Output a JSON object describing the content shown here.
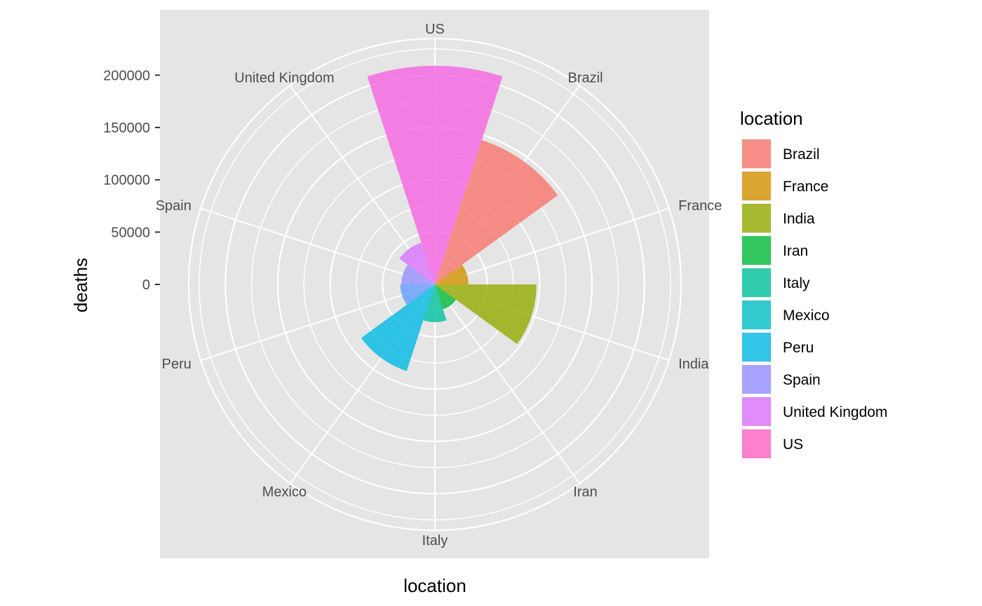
{
  "chart_data": {
    "type": "polar-bar",
    "xlabel": "location",
    "ylabel": "deaths",
    "categories": [
      "US",
      "Brazil",
      "France",
      "India",
      "Iran",
      "Italy",
      "Mexico",
      "Peru",
      "Spain",
      "United Kingdom"
    ],
    "values": [
      209000,
      145000,
      32000,
      97000,
      25000,
      36000,
      87000,
      33000,
      32000,
      42000
    ],
    "colors": [
      "#F564E3",
      "#F8766D",
      "#D39200",
      "#93AA00",
      "#00BA38",
      "#00C19F",
      "#00B9E3",
      "#619CFF",
      "#9590FF",
      "#DB72FB"
    ],
    "y_ticks": [
      0,
      50000,
      100000,
      150000,
      200000
    ],
    "y_tick_labels": [
      "0",
      "50000",
      "100000",
      "150000",
      "200000"
    ],
    "ylim": [
      0,
      235000
    ],
    "grid": true,
    "bar_opacity": 0.8,
    "legend": {
      "title": "location",
      "position": "right",
      "items": [
        {
          "label": "Brazil",
          "color": "#F8766D"
        },
        {
          "label": "France",
          "color": "#D39200"
        },
        {
          "label": "India",
          "color": "#93AA00"
        },
        {
          "label": "Iran",
          "color": "#00BA38"
        },
        {
          "label": "Italy",
          "color": "#00C19F"
        },
        {
          "label": "Mexico",
          "color": "#00BFC4"
        },
        {
          "label": "Peru",
          "color": "#00B9E3"
        },
        {
          "label": "Spain",
          "color": "#9590FF"
        },
        {
          "label": "United Kingdom",
          "color": "#DB72FB"
        },
        {
          "label": "US",
          "color": "#FF61C3"
        }
      ]
    }
  }
}
